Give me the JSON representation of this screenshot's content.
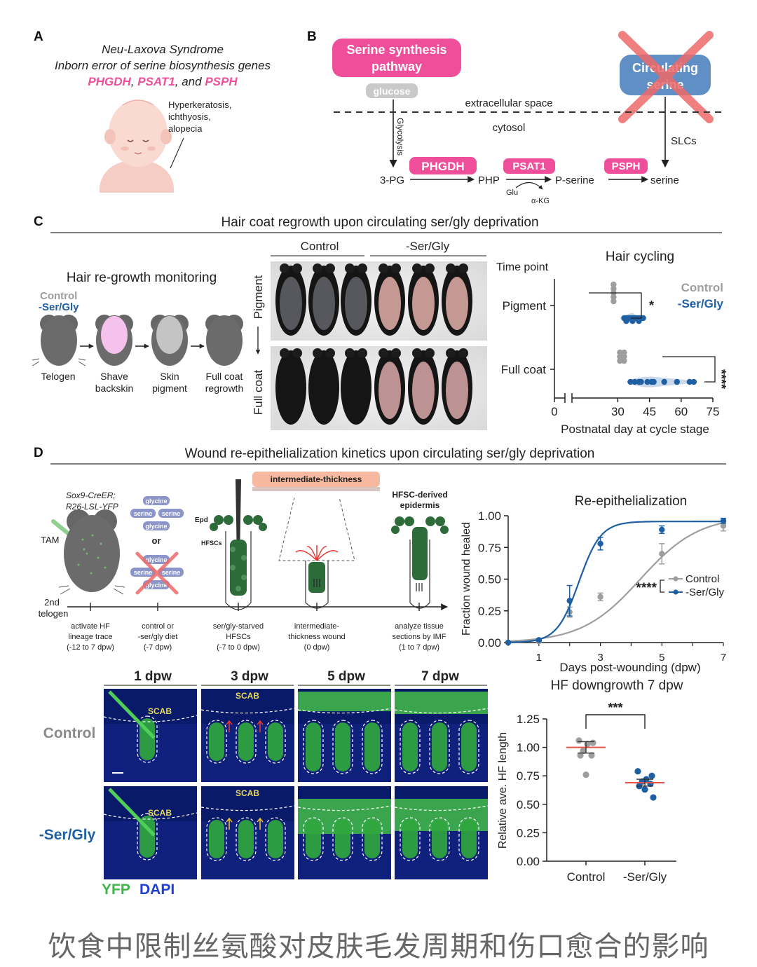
{
  "panelA": {
    "label": "A",
    "line1": "Neu-Laxova Syndrome",
    "line2": "Inborn error of serine biosynthesis genes",
    "gene1": "PHGDH",
    "sep1": ", ",
    "gene2": "PSAT1",
    "sep2": ", and ",
    "gene3": "PSPH",
    "symptoms": [
      "Hyperkeratosis,",
      "ichthyosis,",
      "alopecia"
    ]
  },
  "panelB": {
    "label": "B",
    "synth_line1": "Serine synthesis",
    "synth_line2": "pathway",
    "circ_line1": "Circulating",
    "circ_line2": "serine",
    "glucose": "glucose",
    "extracellular": "extracellular space",
    "cytosol": "cytosol",
    "glycolysis": "Glycolysis",
    "slcs": "SLCs",
    "pg3": "3-PG",
    "enzyme1": "PHGDH",
    "php": "PHP",
    "enzyme2": "PSAT1",
    "glu": "Glu",
    "akg": "α-KG",
    "pserine": "P-serine",
    "enzyme3": "PSPH",
    "serine": "serine"
  },
  "panelC": {
    "label": "C",
    "title": "Hair coat regrowth upon circulating ser/gly deprivation",
    "monitoring_title": "Hair re-growth monitoring",
    "legend_control": "Control",
    "legend_treat": "-Ser/Gly",
    "steps": [
      "Telogen",
      "Shave",
      "backskin",
      "Skin",
      "pigment",
      "Full coat",
      "regrowth"
    ],
    "photo_col_control": "Control",
    "photo_col_treat": "-Ser/Gly",
    "photo_row_pigment": "Pigment",
    "photo_row_fullcoat": "Full coat",
    "chart_title": "Hair cycling",
    "timepoint": "Time point",
    "sig_pigment": "*",
    "sig_fullcoat": "****"
  },
  "panelD": {
    "label": "D",
    "title": "Wound re-epithelialization kinetics upon circulating ser/gly deprivation",
    "genotype1": "Sox9-CreER;",
    "genotype2": "R26-LSL-YFP",
    "tam": "TAM",
    "telogen1": "2nd",
    "telogen2": "telogen",
    "diet_items": [
      "glycine",
      "serine",
      "serine",
      "glycine"
    ],
    "or": "or",
    "diet_items_x": [
      "glycine",
      "serine",
      "serine",
      "glycine"
    ],
    "epd": "Epd",
    "hfscs": "HFSCs",
    "wound_label": "intermediate-thickness",
    "hfsc_epi1": "HFSC-derived",
    "hfsc_epi2": "epidermis",
    "timeline": [
      [
        "activate HF",
        "lineage trace",
        "(-12 to 7 dpw)"
      ],
      [
        "control or",
        "-ser/gly diet",
        "(-7 dpw)"
      ],
      [
        "ser/gly-starved",
        "HFSCs",
        "(-7 to 0 dpw)"
      ],
      [
        "intermediate-",
        "thickness wound",
        "(0 dpw)"
      ],
      [
        "analyze tissue",
        "sections by IMF",
        "(1 to 7 dpw)"
      ]
    ],
    "micro_cols": [
      "1 dpw",
      "3 dpw",
      "5 dpw",
      "7 dpw"
    ],
    "micro_row1": "Control",
    "micro_row2": "-Ser/Gly",
    "scab": "SCAB",
    "yfp": "YFP",
    "dapi": "DAPI",
    "sig_reepi": "****",
    "sig_hf": "***"
  },
  "caption": "饮食中限制丝氨酸对皮肤毛发周期和伤口愈合的影响",
  "colors": {
    "control": "#9e9e9e",
    "treat": "#1f5fa3",
    "pink": "#ef4f9a",
    "red_mean": "#e8534a"
  },
  "chart_data": [
    {
      "type": "scatter",
      "title": "Hair cycling",
      "xlabel": "Postnatal day at cycle stage",
      "ylabel": "Time point",
      "categories": [
        "Pigment",
        "Full coat"
      ],
      "xlim": [
        0,
        75
      ],
      "xticks": [
        0,
        30,
        45,
        60,
        75
      ],
      "axis_break": true,
      "legend": "top-right",
      "series": [
        {
          "name": "Control",
          "color": "#9e9e9e",
          "values": {
            "Pigment": [
              28,
              28,
              28,
              28,
              28
            ],
            "Full coat": [
              31,
              31,
              33,
              33,
              33,
              31
            ]
          }
        },
        {
          "name": "-Ser/Gly",
          "color": "#1f5fa3",
          "values": {
            "Pigment": [
              33,
              34,
              35,
              36,
              37,
              38,
              39,
              40,
              41,
              42,
              34,
              37,
              40
            ],
            "Full coat": [
              36,
              38,
              40,
              41,
              44,
              46,
              47,
              52,
              58,
              64,
              66
            ]
          }
        }
      ]
    },
    {
      "type": "line",
      "title": "Re-epithelialization",
      "xlabel": "Days post-wounding (dpw)",
      "ylabel": "Fraction wound healed",
      "xlim": [
        0,
        7
      ],
      "ylim": [
        0,
        1
      ],
      "xticks": [
        1,
        3,
        5,
        7
      ],
      "yticks": [
        "0.00",
        "0.25",
        "0.50",
        "0.75",
        "1.00"
      ],
      "legend": "right",
      "series": [
        {
          "name": "Control",
          "color": "#9e9e9e",
          "x": [
            0,
            1,
            2,
            3,
            5,
            7
          ],
          "y": [
            0.0,
            0.01,
            0.24,
            0.36,
            0.7,
            0.92
          ],
          "err": [
            0,
            0.01,
            0.04,
            0.03,
            0.08,
            0.04
          ],
          "fit": {
            "type": "sigmoid",
            "top": 1.0,
            "x50": 4.3,
            "k": 1.05
          }
        },
        {
          "name": "-Ser/Gly",
          "color": "#1f5fa3",
          "x": [
            0,
            1,
            2,
            3,
            5,
            7
          ],
          "y": [
            0.0,
            0.02,
            0.33,
            0.78,
            0.89,
            0.96
          ],
          "err": [
            0,
            0.01,
            0.12,
            0.05,
            0.03,
            0.02
          ],
          "fit": {
            "type": "sigmoid",
            "top": 0.955,
            "x50": 2.3,
            "k": 2.8
          }
        }
      ]
    },
    {
      "type": "scatter",
      "title": "HF downgrowth 7 dpw",
      "xlabel": "",
      "ylabel": "Relative ave. HF length",
      "categories": [
        "Control",
        "-Ser/Gly"
      ],
      "ylim": [
        0,
        1.25
      ],
      "yticks": [
        "0.00",
        "0.25",
        "0.50",
        "0.75",
        "1.00",
        "1.25"
      ],
      "series": [
        {
          "name": "Control",
          "color": "#9e9e9e",
          "values": [
            1.06,
            1.04,
            1.03,
            0.97,
            0.93,
            0.93,
            0.76
          ],
          "mean": 1.0,
          "sem": 0.05
        },
        {
          "name": "-Ser/Gly",
          "color": "#1f5fa3",
          "values": [
            0.79,
            0.75,
            0.72,
            0.7,
            0.68,
            0.66,
            0.63,
            0.56
          ],
          "mean": 0.69,
          "sem": 0.03
        }
      ]
    }
  ]
}
